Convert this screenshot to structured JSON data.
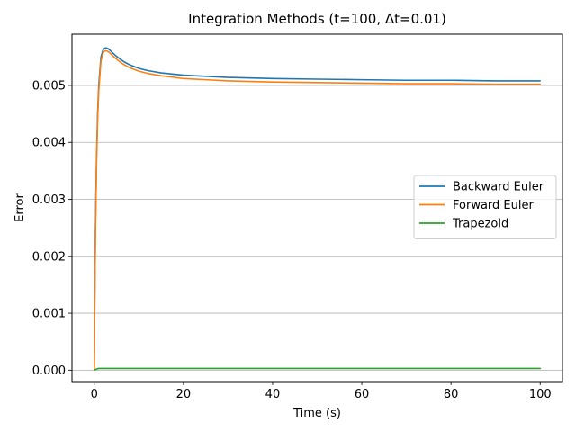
{
  "chart_data": {
    "type": "line",
    "title": "Integration Methods (t=100, Δt=0.01)",
    "xlabel": "Time (s)",
    "ylabel": "Error",
    "xlim": [
      -5,
      105
    ],
    "ylim": [
      -0.0002,
      0.0059
    ],
    "xticks": [
      0,
      20,
      40,
      60,
      80,
      100
    ],
    "xtick_labels": [
      "0",
      "20",
      "40",
      "60",
      "80",
      "100"
    ],
    "yticks": [
      0.0,
      0.001,
      0.002,
      0.003,
      0.004,
      0.005
    ],
    "ytick_labels": [
      "0.000",
      "0.001",
      "0.002",
      "0.003",
      "0.004",
      "0.005"
    ],
    "grid": "horizontal",
    "legend_position": "center-right",
    "series": [
      {
        "name": "Backward Euler",
        "color": "#1f77b4",
        "x": [
          0,
          0.1,
          0.25,
          0.5,
          0.75,
          1,
          1.5,
          2,
          2.5,
          3,
          3.5,
          4,
          5,
          6,
          7,
          8,
          10,
          12,
          15,
          20,
          25,
          30,
          40,
          50,
          60,
          70,
          80,
          90,
          100
        ],
        "y": [
          0.0,
          0.0012,
          0.0024,
          0.0037,
          0.0045,
          0.005,
          0.0055,
          0.00563,
          0.00566,
          0.00565,
          0.00562,
          0.00558,
          0.00551,
          0.00545,
          0.0054,
          0.00536,
          0.0053,
          0.00526,
          0.00522,
          0.00518,
          0.00516,
          0.00514,
          0.00512,
          0.00511,
          0.0051,
          0.00509,
          0.00509,
          0.00508,
          0.00508
        ]
      },
      {
        "name": "Forward Euler",
        "color": "#ff7f0e",
        "x": [
          0,
          0.1,
          0.25,
          0.5,
          0.75,
          1,
          1.5,
          2,
          2.5,
          3,
          3.5,
          4,
          5,
          6,
          7,
          8,
          10,
          12,
          15,
          20,
          25,
          30,
          40,
          50,
          60,
          70,
          80,
          90,
          100
        ],
        "y": [
          0.0,
          0.0011,
          0.0023,
          0.0036,
          0.0044,
          0.0049,
          0.00543,
          0.00558,
          0.00561,
          0.0056,
          0.00557,
          0.00553,
          0.00546,
          0.0054,
          0.00535,
          0.00531,
          0.00525,
          0.00521,
          0.00517,
          0.00512,
          0.0051,
          0.00508,
          0.00506,
          0.00505,
          0.00504,
          0.00503,
          0.00503,
          0.00502,
          0.00502
        ]
      },
      {
        "name": "Trapezoid",
        "color": "#2ca02c",
        "x": [
          0,
          0.5,
          1,
          2,
          5,
          10,
          20,
          40,
          60,
          80,
          100
        ],
        "y": [
          0.0,
          2e-05,
          3e-05,
          3e-05,
          3e-05,
          3e-05,
          3e-05,
          3e-05,
          3e-05,
          3e-05,
          3e-05
        ]
      }
    ]
  }
}
